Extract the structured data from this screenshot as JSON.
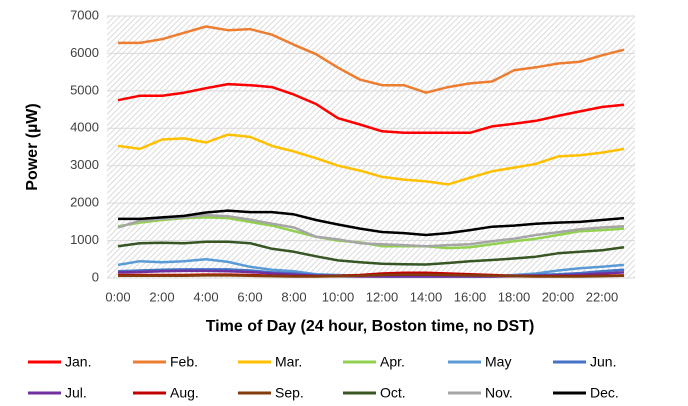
{
  "chart_data": {
    "type": "line",
    "y_label": "Power (µW)",
    "x_label": "Time of Day (24 hour, Boston time, no DST)",
    "categories": [
      "0:00",
      null,
      "2:00",
      null,
      "4:00",
      null,
      "6:00",
      null,
      "8:00",
      null,
      "10:00",
      null,
      "12:00",
      null,
      "14:00",
      null,
      "16:00",
      null,
      "18:00",
      null,
      "20:00",
      null,
      "22:00",
      null
    ],
    "series": [
      {
        "name": "Jan.",
        "color": "#ff0000",
        "values": [
          4750,
          4870,
          4870,
          4950,
          5070,
          5180,
          5150,
          5100,
          4900,
          4650,
          4270,
          4100,
          3920,
          3880,
          3880,
          3880,
          3880,
          4050,
          4120,
          4200,
          4330,
          4450,
          4570,
          4630
        ]
      },
      {
        "name": "Feb.",
        "color": "#ed7d31",
        "values": [
          6280,
          6280,
          6380,
          6550,
          6720,
          6620,
          6650,
          6500,
          6230,
          5980,
          5620,
          5300,
          5150,
          5150,
          4950,
          5100,
          5200,
          5250,
          5550,
          5630,
          5730,
          5780,
          5950,
          6100
        ]
      },
      {
        "name": "Mar.",
        "color": "#ffc000",
        "values": [
          3530,
          3450,
          3700,
          3730,
          3620,
          3830,
          3770,
          3530,
          3380,
          3200,
          3000,
          2870,
          2700,
          2630,
          2580,
          2500,
          2680,
          2850,
          2950,
          3050,
          3250,
          3280,
          3350,
          3450
        ]
      },
      {
        "name": "Apr.",
        "color": "#92d050",
        "values": [
          1380,
          1480,
          1550,
          1600,
          1620,
          1600,
          1500,
          1400,
          1250,
          1100,
          1000,
          950,
          850,
          850,
          850,
          800,
          820,
          900,
          980,
          1050,
          1150,
          1250,
          1280,
          1320
        ]
      },
      {
        "name": "May",
        "color": "#5b9bd5",
        "values": [
          350,
          450,
          420,
          450,
          500,
          430,
          300,
          220,
          180,
          100,
          80,
          60,
          50,
          50,
          50,
          50,
          50,
          50,
          80,
          120,
          200,
          260,
          300,
          350
        ]
      },
      {
        "name": "Jun.",
        "color": "#4472c4",
        "values": [
          180,
          200,
          220,
          230,
          230,
          230,
          200,
          150,
          120,
          80,
          60,
          50,
          40,
          40,
          40,
          40,
          40,
          40,
          60,
          80,
          100,
          130,
          180,
          220
        ]
      },
      {
        "name": "Jul.",
        "color": "#7030a0",
        "values": [
          150,
          160,
          180,
          190,
          190,
          180,
          160,
          120,
          90,
          60,
          50,
          40,
          40,
          40,
          40,
          40,
          40,
          40,
          50,
          60,
          70,
          90,
          120,
          150
        ]
      },
      {
        "name": "Aug.",
        "color": "#c00000",
        "values": [
          80,
          80,
          80,
          80,
          90,
          90,
          80,
          60,
          50,
          50,
          60,
          80,
          120,
          140,
          140,
          120,
          100,
          80,
          60,
          50,
          50,
          50,
          60,
          70
        ]
      },
      {
        "name": "Sep.",
        "color": "#843c0c",
        "values": [
          60,
          60,
          60,
          60,
          70,
          70,
          60,
          50,
          40,
          40,
          50,
          60,
          80,
          90,
          90,
          80,
          70,
          60,
          50,
          40,
          40,
          40,
          50,
          60
        ]
      },
      {
        "name": "Oct.",
        "color": "#375623",
        "values": [
          850,
          930,
          940,
          930,
          970,
          970,
          930,
          780,
          700,
          580,
          470,
          420,
          380,
          370,
          360,
          400,
          450,
          480,
          520,
          570,
          660,
          700,
          740,
          820
        ]
      },
      {
        "name": "Nov.",
        "color": "#a5a5a5",
        "values": [
          1350,
          1530,
          1580,
          1620,
          1680,
          1650,
          1560,
          1450,
          1350,
          1100,
          1030,
          930,
          900,
          880,
          850,
          880,
          900,
          980,
          1050,
          1150,
          1220,
          1300,
          1350,
          1380
        ]
      },
      {
        "name": "Dec.",
        "color": "#000000",
        "values": [
          1580,
          1580,
          1620,
          1660,
          1750,
          1800,
          1760,
          1760,
          1700,
          1550,
          1430,
          1320,
          1230,
          1200,
          1150,
          1200,
          1280,
          1370,
          1400,
          1450,
          1480,
          1500,
          1550,
          1600
        ]
      }
    ],
    "ylim": [
      0,
      7000
    ],
    "yticks": [
      0,
      1000,
      2000,
      3000,
      4000,
      5000,
      6000,
      7000
    ],
    "grid": true,
    "legend": "bottom"
  }
}
